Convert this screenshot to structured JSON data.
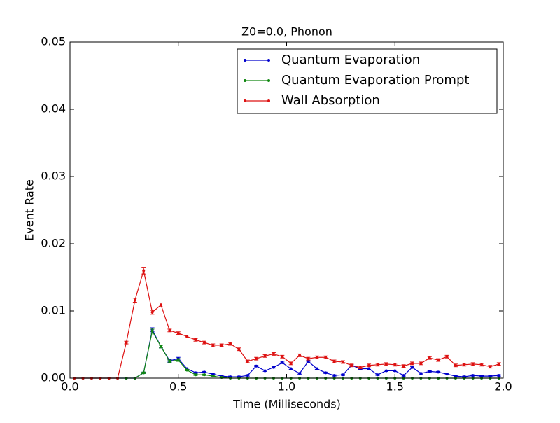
{
  "chart_data": {
    "type": "line",
    "title": "Z0=0.0, Phonon",
    "x_label": "Time (Milliseconds)",
    "y_label": "Event Rate",
    "x": [
      0.02,
      0.06,
      0.1,
      0.14,
      0.18,
      0.22,
      0.26,
      0.3,
      0.34,
      0.38,
      0.42,
      0.46,
      0.5,
      0.54,
      0.58,
      0.62,
      0.66,
      0.7,
      0.74,
      0.78,
      0.82,
      0.86,
      0.9,
      0.94,
      0.98,
      1.02,
      1.06,
      1.1,
      1.14,
      1.18,
      1.22,
      1.26,
      1.3,
      1.34,
      1.38,
      1.42,
      1.46,
      1.5,
      1.54,
      1.58,
      1.62,
      1.66,
      1.7,
      1.74,
      1.78,
      1.82,
      1.86,
      1.9,
      1.94,
      1.98
    ],
    "series": [
      {
        "name": "Quantum Evaporation",
        "color": "#0000cc",
        "values": [
          0,
          0,
          0,
          0,
          0,
          0,
          0,
          0,
          0.0008,
          0.0072,
          0.0047,
          0.0026,
          0.0029,
          0.0014,
          0.0008,
          0.0009,
          0.0006,
          0.0003,
          0.0002,
          0.0002,
          0.0004,
          0.0018,
          0.0011,
          0.0016,
          0.0023,
          0.0014,
          0.0007,
          0.0025,
          0.0014,
          0.0008,
          0.0004,
          0.0005,
          0.0019,
          0.0014,
          0.0014,
          0.0005,
          0.0011,
          0.0011,
          0.0004,
          0.0016,
          0.0007,
          0.001,
          0.0009,
          0.0006,
          0.0003,
          0.0002,
          0.0004,
          0.0003,
          0.0003,
          0.0004
        ],
        "errors": [
          0,
          0,
          0,
          0,
          0,
          0,
          0,
          0,
          0.0001,
          0.0003,
          0.0002,
          0.0002,
          0.0002,
          0.0001,
          0.0001,
          0.0001,
          0.0001,
          0.0001,
          0.0001,
          0.0001,
          0.0001,
          0.0001,
          0.0001,
          0.0001,
          0.0001,
          0.0001,
          0.0001,
          0.0001,
          0.0001,
          0.0001,
          0.0001,
          0.0001,
          0.0001,
          0.0001,
          0.0001,
          0.0001,
          0.0001,
          0.0001,
          0.0001,
          0.0001,
          0.0001,
          0.0001,
          0.0001,
          0.0001,
          0.0001,
          0.0001,
          0.0001,
          0.0001,
          0.0001,
          0.0001
        ]
      },
      {
        "name": "Quantum Evaporation Prompt",
        "color": "#118811",
        "values": [
          0,
          0,
          0,
          0,
          0,
          0,
          0,
          0,
          0.0008,
          0.007,
          0.0047,
          0.0025,
          0.0027,
          0.0012,
          0.0005,
          0.0005,
          0.0003,
          0.0001,
          0,
          0,
          0,
          0,
          0,
          0,
          0,
          0,
          0,
          0,
          0,
          0,
          0,
          0,
          0,
          0,
          0,
          0,
          0,
          0,
          0,
          0,
          0,
          0,
          0,
          0,
          0,
          0,
          0,
          0,
          0,
          0
        ],
        "errors": [
          0,
          0,
          0,
          0,
          0,
          0,
          0,
          0,
          0.0001,
          0.0003,
          0.0002,
          0.0002,
          0.0002,
          0.0001,
          0.0001,
          0.0001,
          0.0001,
          0.0001,
          0,
          0,
          0,
          0,
          0,
          0,
          0,
          0,
          0,
          0,
          0,
          0,
          0,
          0,
          0,
          0,
          0,
          0,
          0,
          0,
          0,
          0,
          0,
          0,
          0,
          0,
          0,
          0,
          0,
          0,
          0,
          0
        ]
      },
      {
        "name": "Wall Absorption",
        "color": "#dd1111",
        "values": [
          0,
          0,
          0,
          0,
          0,
          0,
          0.0053,
          0.0116,
          0.016,
          0.0098,
          0.0109,
          0.0071,
          0.0067,
          0.0062,
          0.0057,
          0.0053,
          0.0049,
          0.0049,
          0.0051,
          0.0043,
          0.0025,
          0.0029,
          0.0033,
          0.0036,
          0.0032,
          0.0022,
          0.0034,
          0.0029,
          0.0031,
          0.0031,
          0.0025,
          0.0024,
          0.0019,
          0.0016,
          0.0019,
          0.002,
          0.0021,
          0.002,
          0.0018,
          0.0022,
          0.0022,
          0.003,
          0.0027,
          0.0032,
          0.0019,
          0.002,
          0.0021,
          0.002,
          0.0017,
          0.0021
        ],
        "errors": [
          0,
          0,
          0,
          0,
          0,
          0,
          0.0002,
          0.0003,
          0.0005,
          0.0003,
          0.0003,
          0.0002,
          0.0002,
          0.0002,
          0.0002,
          0.0002,
          0.0002,
          0.0002,
          0.0002,
          0.0002,
          0.0002,
          0.0002,
          0.0002,
          0.0002,
          0.0002,
          0.0002,
          0.0002,
          0.0002,
          0.0002,
          0.0002,
          0.0002,
          0.0002,
          0.0002,
          0.0002,
          0.0002,
          0.0002,
          0.0002,
          0.0002,
          0.0002,
          0.0002,
          0.0002,
          0.0002,
          0.0002,
          0.0002,
          0.0002,
          0.0002,
          0.0002,
          0.0002,
          0.0002,
          0.0002
        ]
      }
    ],
    "xlim": [
      0,
      2.0
    ],
    "xticks": [
      {
        "value": 0,
        "label": "0.0"
      },
      0.5,
      {
        "value": 1.0,
        "label": "1.0"
      },
      1.5,
      {
        "value": 2.0,
        "label": "2.0"
      }
    ],
    "ylim": [
      0,
      0.05
    ],
    "yticks": [
      {
        "value": 0,
        "label": "0.00"
      },
      0.01,
      0.02,
      0.03,
      0.04,
      0.05
    ],
    "legend": "upper right",
    "grid": false
  }
}
